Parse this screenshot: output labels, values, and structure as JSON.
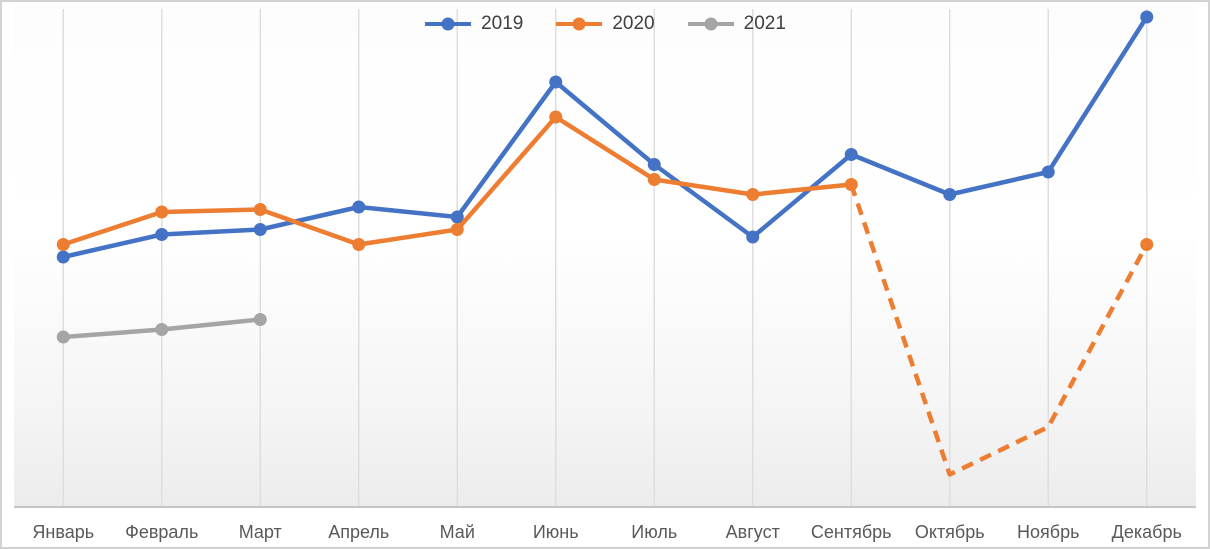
{
  "chart_data": {
    "type": "line",
    "title": "",
    "xlabel": "",
    "ylabel": "",
    "categories": [
      "Январь",
      "Февраль",
      "Март",
      "Апрель",
      "Май",
      "Июнь",
      "Июль",
      "Август",
      "Сентябрь",
      "Октябрь",
      "Ноябрь",
      "Декабрь"
    ],
    "series": [
      {
        "name": "2019",
        "color": "#4472C4",
        "style": "solid",
        "values": [
          50,
          54.5,
          55.5,
          60,
          58,
          85,
          68.5,
          54,
          70.5,
          62.5,
          67,
          98
        ]
      },
      {
        "name": "2020",
        "color": "#ED7D31",
        "style": "solid-then-dashed",
        "dash_from_index": 8,
        "marker_skip_indices": [
          9,
          10
        ],
        "values": [
          52.5,
          59,
          59.5,
          52.5,
          55.5,
          78,
          65.5,
          62.5,
          64.5,
          6.5,
          16,
          52.5
        ]
      },
      {
        "name": "2021",
        "color": "#A5A5A5",
        "style": "solid",
        "values": [
          34,
          35.5,
          37.5,
          null,
          null,
          null,
          null,
          null,
          null,
          null,
          null,
          null
        ]
      }
    ],
    "ylim": [
      0,
      100
    ],
    "y_axis_visible": false,
    "grid": "vertical",
    "legend_position": "top-center"
  },
  "colors": {
    "axis_line": "#c6c6c6",
    "gridline": "#dedede",
    "tick_label": "#595959",
    "legend_text": "#404040",
    "frame_border": "#d2d2d2"
  }
}
